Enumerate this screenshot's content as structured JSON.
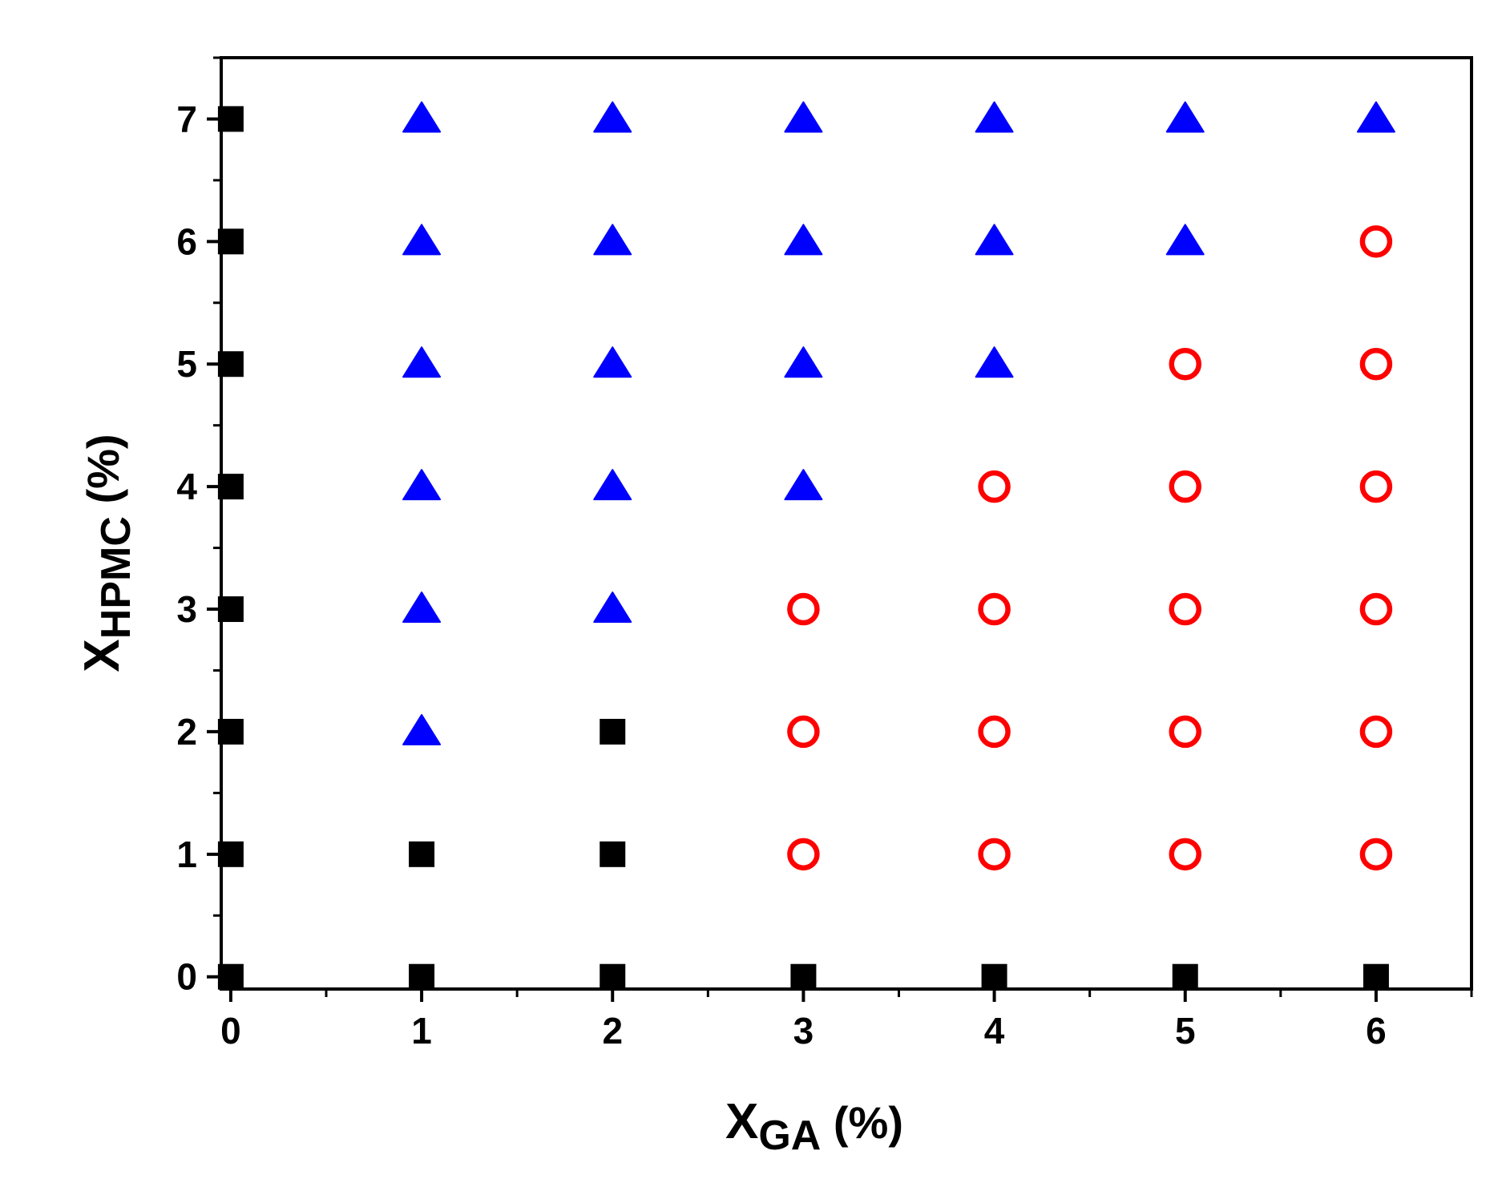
{
  "chart_data": {
    "type": "scatter",
    "title": "",
    "xlabel": {
      "main": "X",
      "sub": "GA",
      "suffix": " (%)"
    },
    "ylabel": {
      "main": "X",
      "sub": "HPMC",
      "suffix": " (%)"
    },
    "xlim": [
      -0.05,
      6.5
    ],
    "ylim": [
      -0.1,
      7.5
    ],
    "xticks": [
      0,
      1,
      2,
      3,
      4,
      5,
      6
    ],
    "yticks": [
      0,
      1,
      2,
      3,
      4,
      5,
      6,
      7
    ],
    "xtick_labels": [
      "0",
      "1",
      "2",
      "3",
      "4",
      "5",
      "6"
    ],
    "ytick_labels": [
      "0",
      "1",
      "2",
      "3",
      "4",
      "5",
      "6",
      "7"
    ],
    "grid": false,
    "legend": "none",
    "series": [
      {
        "marker": "square",
        "color": "#000000",
        "points": [
          [
            0,
            0
          ],
          [
            0,
            1
          ],
          [
            0,
            2
          ],
          [
            0,
            3
          ],
          [
            0,
            4
          ],
          [
            0,
            5
          ],
          [
            0,
            6
          ],
          [
            0,
            7
          ],
          [
            1,
            0
          ],
          [
            1,
            1
          ],
          [
            2,
            0
          ],
          [
            2,
            1
          ],
          [
            2,
            2
          ],
          [
            3,
            0
          ],
          [
            4,
            0
          ],
          [
            5,
            0
          ],
          [
            6,
            0
          ]
        ]
      },
      {
        "marker": "triangle",
        "color": "#0000ff",
        "points": [
          [
            1,
            2
          ],
          [
            1,
            3
          ],
          [
            1,
            4
          ],
          [
            1,
            5
          ],
          [
            1,
            6
          ],
          [
            1,
            7
          ],
          [
            2,
            3
          ],
          [
            2,
            4
          ],
          [
            2,
            5
          ],
          [
            2,
            6
          ],
          [
            2,
            7
          ],
          [
            3,
            4
          ],
          [
            3,
            5
          ],
          [
            3,
            6
          ],
          [
            3,
            7
          ],
          [
            4,
            5
          ],
          [
            4,
            6
          ],
          [
            4,
            7
          ],
          [
            5,
            6
          ],
          [
            5,
            7
          ],
          [
            6,
            7
          ]
        ]
      },
      {
        "marker": "open-circle",
        "color": "#ff0000",
        "points": [
          [
            3,
            1
          ],
          [
            3,
            2
          ],
          [
            3,
            3
          ],
          [
            4,
            1
          ],
          [
            4,
            2
          ],
          [
            4,
            3
          ],
          [
            4,
            4
          ],
          [
            5,
            1
          ],
          [
            5,
            2
          ],
          [
            5,
            3
          ],
          [
            5,
            4
          ],
          [
            5,
            5
          ],
          [
            6,
            1
          ],
          [
            6,
            2
          ],
          [
            6,
            3
          ],
          [
            6,
            4
          ],
          [
            6,
            5
          ],
          [
            6,
            6
          ]
        ]
      }
    ]
  }
}
